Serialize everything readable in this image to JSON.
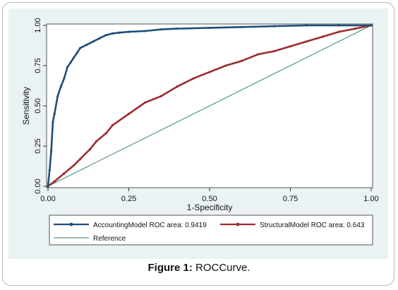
{
  "caption": {
    "label": "Figure 1:",
    "text": "ROCCurve."
  },
  "chart_data": {
    "type": "line",
    "xlabel": "1-Specificity",
    "ylabel": "Sensitivity",
    "xlim": [
      0,
      1
    ],
    "ylim": [
      0,
      1
    ],
    "xticks": [
      "0.00",
      "0.25",
      "0.50",
      "0.75",
      "1.00"
    ],
    "yticks": [
      "0.00",
      "0.25",
      "0.50",
      "0.75",
      "1.00"
    ],
    "grid": false,
    "legend_position": "bottom",
    "series": [
      {
        "name": "AccountingModel ROC area: 0.9419",
        "color": "#1f4e79",
        "marker": "circle",
        "x": [
          0,
          0.005,
          0.01,
          0.015,
          0.02,
          0.03,
          0.04,
          0.05,
          0.06,
          0.07,
          0.08,
          0.09,
          0.1,
          0.12,
          0.14,
          0.16,
          0.18,
          0.2,
          0.22,
          0.25,
          0.3,
          0.35,
          0.4,
          0.5,
          0.6,
          0.7,
          0.8,
          0.9,
          1.0
        ],
        "y": [
          0,
          0.1,
          0.22,
          0.4,
          0.45,
          0.56,
          0.62,
          0.67,
          0.74,
          0.77,
          0.8,
          0.83,
          0.86,
          0.88,
          0.9,
          0.92,
          0.94,
          0.95,
          0.955,
          0.96,
          0.965,
          0.975,
          0.98,
          0.985,
          0.99,
          0.995,
          1.0,
          1.0,
          1.0
        ]
      },
      {
        "name": "StructuralModel ROC area: 0.643",
        "color": "#9b2d30",
        "marker": "circle",
        "x": [
          0,
          0.02,
          0.05,
          0.08,
          0.1,
          0.13,
          0.15,
          0.18,
          0.2,
          0.25,
          0.3,
          0.35,
          0.4,
          0.45,
          0.5,
          0.55,
          0.6,
          0.65,
          0.7,
          0.75,
          0.8,
          0.85,
          0.9,
          0.95,
          1.0
        ],
        "y": [
          0,
          0.03,
          0.08,
          0.13,
          0.17,
          0.23,
          0.28,
          0.33,
          0.38,
          0.45,
          0.52,
          0.56,
          0.62,
          0.67,
          0.71,
          0.75,
          0.78,
          0.82,
          0.84,
          0.87,
          0.9,
          0.93,
          0.96,
          0.98,
          1.0
        ]
      },
      {
        "name": "Reference",
        "color": "#3b7d7a",
        "marker": "none",
        "x": [
          0,
          1
        ],
        "y": [
          0,
          1
        ]
      }
    ]
  }
}
